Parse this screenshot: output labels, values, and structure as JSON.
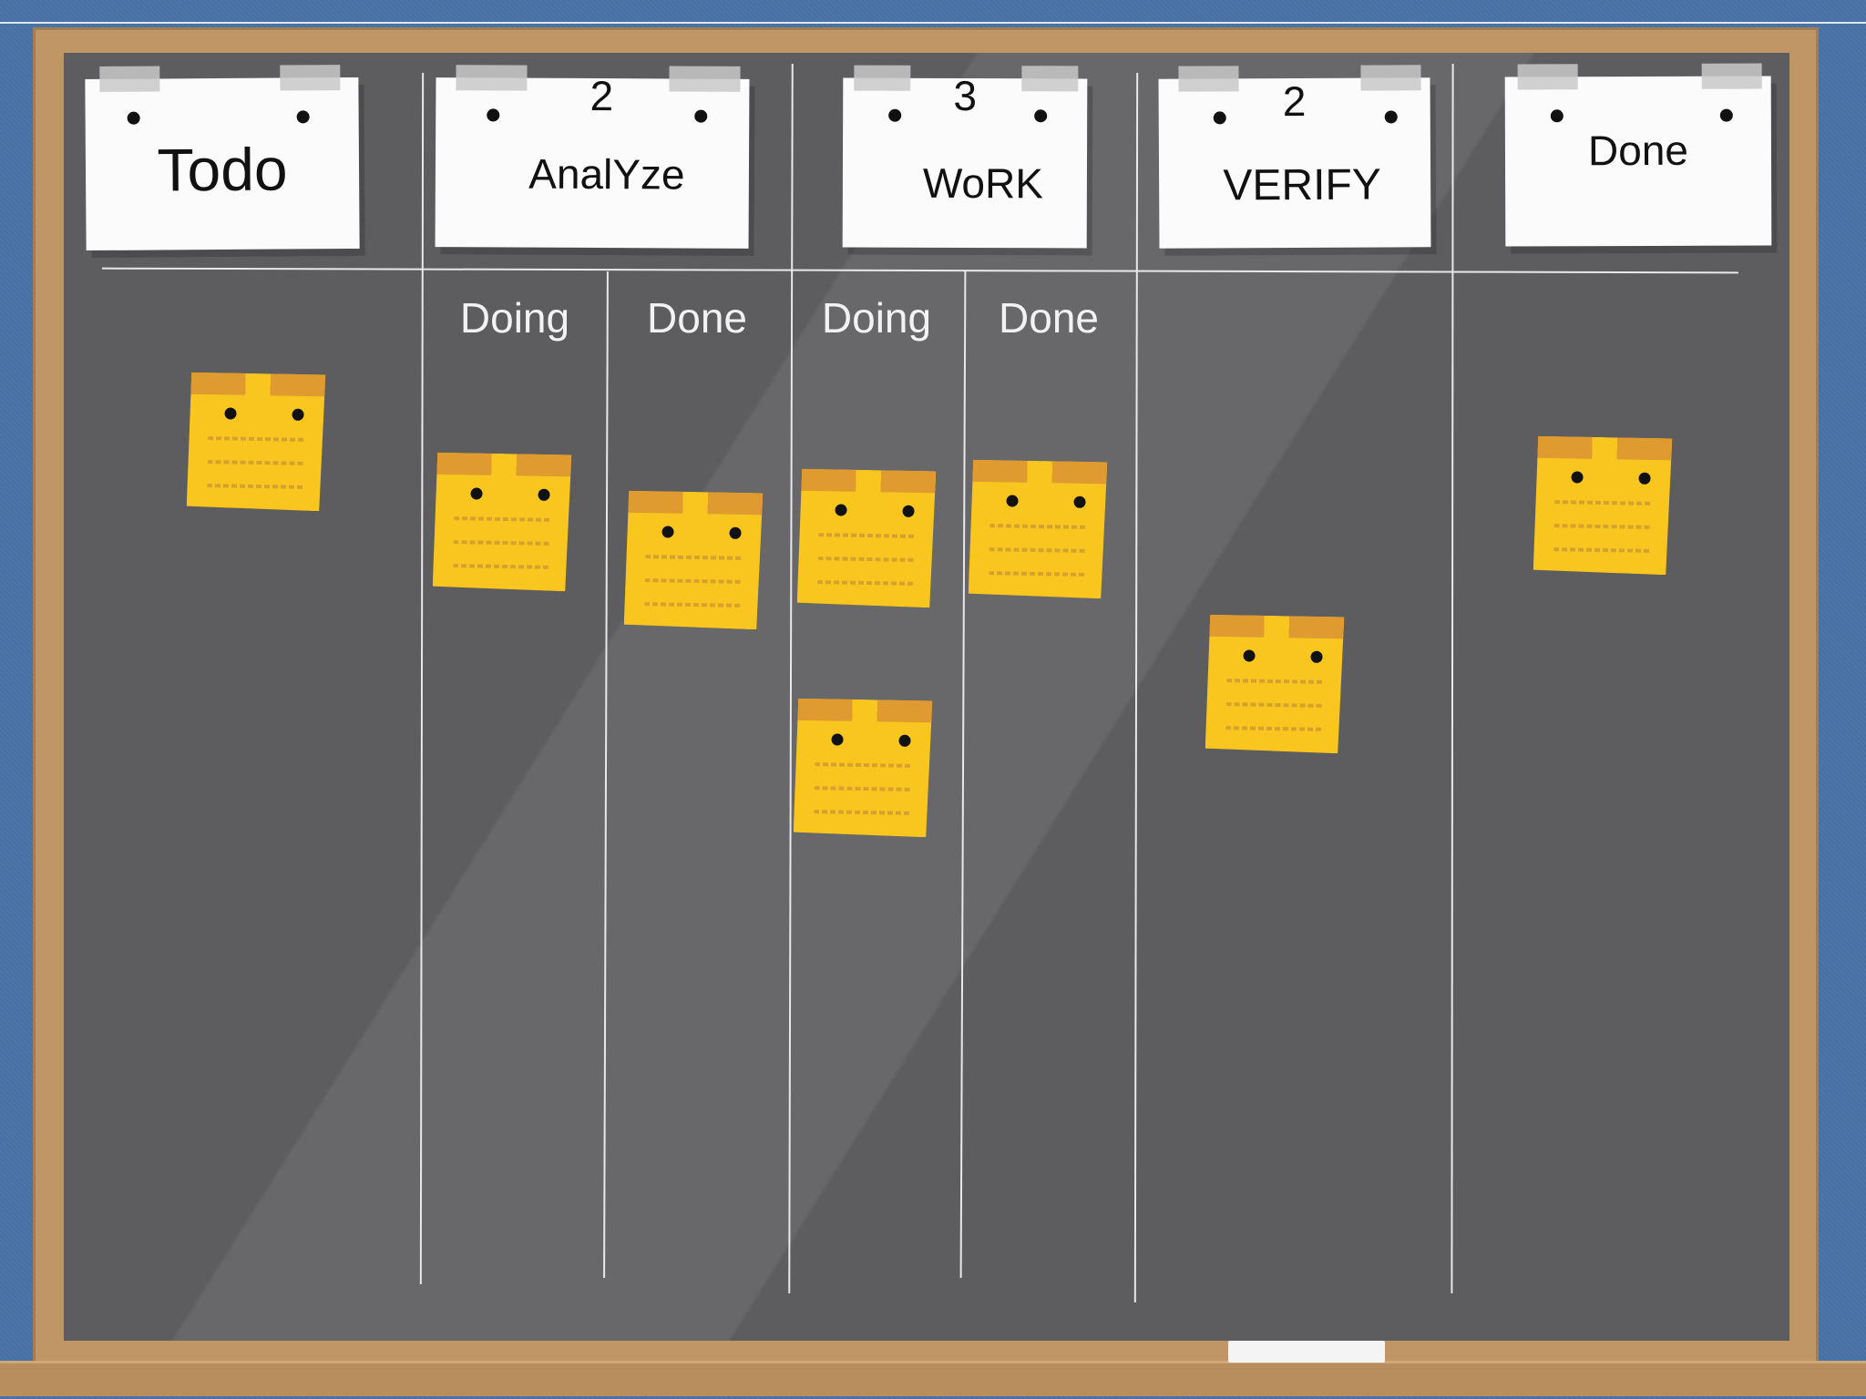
{
  "board": {
    "columns": [
      {
        "title": "Todo",
        "wip": ""
      },
      {
        "title": "AnalYze",
        "wip": "2"
      },
      {
        "title": "WoRK",
        "wip": "3"
      },
      {
        "title": "VERIFY",
        "wip": "2"
      },
      {
        "title": "Done",
        "wip": ""
      }
    ],
    "subcolumns": {
      "analyze_doing": "Doing",
      "analyze_done": "Done",
      "work_doing": "Doing",
      "work_done": "Done"
    }
  },
  "colors": {
    "wall": "#4a72a7",
    "frame": "#c09666",
    "board": "#5d5c5f",
    "sticky": "#f8c61f",
    "sticky_tab": "#df9a30",
    "card": "#fbfbfb"
  },
  "stickies": [
    {
      "lane": "Todo"
    },
    {
      "lane": "AnalYze Doing"
    },
    {
      "lane": "AnalYze Done"
    },
    {
      "lane": "WoRK Doing"
    },
    {
      "lane": "WoRK Doing"
    },
    {
      "lane": "WoRK Done"
    },
    {
      "lane": "VERIFY"
    },
    {
      "lane": "Done"
    }
  ]
}
